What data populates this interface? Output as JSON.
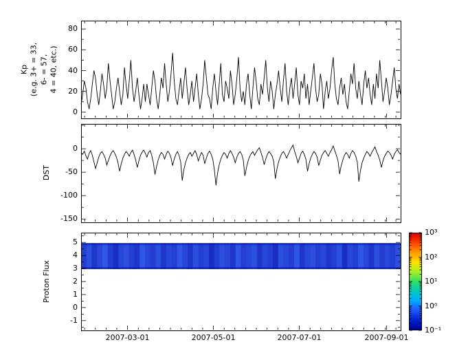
{
  "figure": {
    "background": "#ffffff",
    "axis_color": "#000000"
  },
  "x_axis": {
    "xlim_days": [
      0,
      227
    ],
    "xtick_days": [
      33,
      94,
      155,
      217
    ],
    "xtick_labels": [
      "2007-03-01",
      "2007-05-01",
      "2007-07-01",
      "2007-09-01"
    ]
  },
  "chart_data": [
    {
      "type": "line",
      "name": "kp-index",
      "ylabel": "Kp\n(e.g. 3+ = 33,\n6- = 57,\n4 = 40, etc.)",
      "ylim": [
        -6,
        88
      ],
      "yticks": [
        80,
        60,
        40,
        20,
        0
      ],
      "yticks_minor": [
        70,
        50,
        30,
        10
      ],
      "line_color": "#000000",
      "xtick_labels": [
        "2007-03-01",
        "2007-05-01",
        "2007-07-01",
        "2007-09-01"
      ],
      "values": [
        7,
        17,
        30,
        23,
        10,
        3,
        13,
        27,
        40,
        33,
        17,
        7,
        20,
        37,
        27,
        13,
        23,
        47,
        30,
        17,
        3,
        10,
        23,
        33,
        20,
        7,
        17,
        43,
        27,
        13,
        30,
        50,
        23,
        10,
        20,
        33,
        17,
        3,
        13,
        27,
        10,
        27,
        17,
        7,
        23,
        40,
        30,
        13,
        3,
        17,
        33,
        23,
        47,
        27,
        10,
        20,
        37,
        57,
        30,
        13,
        7,
        20,
        33,
        13,
        27,
        43,
        23,
        7,
        17,
        30,
        10,
        23,
        37,
        17,
        3,
        13,
        27,
        50,
        33,
        17,
        13,
        3,
        23,
        37,
        20,
        7,
        27,
        47,
        17,
        10,
        30,
        23,
        13,
        40,
        27,
        7,
        17,
        33,
        53,
        23,
        10,
        20,
        7,
        27,
        37,
        17,
        3,
        23,
        43,
        30,
        13,
        7,
        27,
        17,
        33,
        50,
        23,
        10,
        30,
        20,
        3,
        17,
        27,
        40,
        23,
        10,
        30,
        47,
        20,
        7,
        23,
        33,
        13,
        27,
        43,
        17,
        7,
        30,
        23,
        37,
        13,
        27,
        7,
        20,
        33,
        47,
        23,
        10,
        17,
        37,
        27,
        3,
        20,
        30,
        13,
        23,
        40,
        53,
        27,
        13,
        7,
        23,
        33,
        17,
        27,
        10,
        3,
        20,
        37,
        27,
        47,
        23,
        13,
        30,
        17,
        7,
        27,
        40,
        23,
        33,
        17,
        7,
        27,
        13,
        37,
        23,
        50,
        30,
        10,
        20,
        33,
        23,
        7,
        17,
        30,
        43,
        23,
        13,
        27,
        17
      ]
    },
    {
      "type": "line",
      "name": "dst-index",
      "ylabel": "DST",
      "ylim": [
        -157,
        53
      ],
      "yticks": [
        0,
        -50,
        -100,
        -150
      ],
      "yticks_minor": [
        50,
        25,
        -25,
        -75,
        -125
      ],
      "line_color": "#000000",
      "xtick_labels": [
        "2007-03-01",
        "2007-05-01",
        "2007-07-01",
        "2007-09-01"
      ],
      "values": [
        -8,
        -12,
        -5,
        -15,
        -22,
        -10,
        -4,
        -14,
        -28,
        -42,
        -30,
        -18,
        -10,
        -6,
        -12,
        -20,
        -35,
        -25,
        -15,
        -8,
        -4,
        -10,
        -18,
        -30,
        -48,
        -32,
        -20,
        -12,
        -6,
        -10,
        -16,
        -8,
        -3,
        -12,
        -24,
        -40,
        -26,
        -14,
        -7,
        -3,
        -10,
        -18,
        -8,
        -4,
        -14,
        -30,
        -55,
        -38,
        -24,
        -14,
        -8,
        -12,
        -22,
        -12,
        -5,
        -10,
        -20,
        -36,
        -22,
        -12,
        -6,
        -14,
        -28,
        -68,
        -45,
        -30,
        -20,
        -12,
        -8,
        -16,
        -10,
        -4,
        -12,
        -26,
        -16,
        -8,
        -14,
        -32,
        -20,
        -10,
        -5,
        -12,
        -22,
        -44,
        -78,
        -52,
        -34,
        -22,
        -14,
        -8,
        -12,
        -20,
        -10,
        -4,
        -10,
        -18,
        -30,
        -18,
        -10,
        -6,
        -12,
        -24,
        -58,
        -40,
        -26,
        -16,
        -10,
        -6,
        -14,
        -8,
        -2,
        2,
        -8,
        -18,
        -34,
        -22,
        -12,
        -6,
        -10,
        -16,
        -28,
        -64,
        -42,
        -28,
        -18,
        -10,
        -6,
        -12,
        -20,
        -12,
        -4,
        2,
        8,
        -6,
        -16,
        -30,
        -20,
        -10,
        -5,
        -12,
        -22,
        -48,
        -32,
        -20,
        -12,
        -6,
        -10,
        -18,
        -36,
        -24,
        -14,
        -8,
        -4,
        -10,
        -16,
        -8,
        -2,
        6,
        -4,
        -14,
        -26,
        -54,
        -36,
        -24,
        -14,
        -8,
        -12,
        -20,
        -10,
        -4,
        -8,
        -16,
        -28,
        -70,
        -46,
        -30,
        -20,
        -12,
        -6,
        -10,
        -16,
        -8,
        -2,
        4,
        -6,
        -14,
        -24,
        -40,
        -26,
        -16,
        -10,
        -5,
        -8,
        -14,
        -22,
        -12,
        -6,
        -2,
        -8,
        -12
      ]
    },
    {
      "type": "heatmap",
      "name": "proton-flux",
      "ylabel": "Proton Flux",
      "ylim": [
        -1.75,
        5.75
      ],
      "yticks": [
        5,
        4,
        3,
        2,
        1,
        0,
        -1
      ],
      "yticks_minor": [
        5.5,
        4.5,
        3.5,
        2.5,
        1.5,
        0.5,
        -0.5,
        -1.5
      ],
      "xtick_labels": [
        "2007-03-01",
        "2007-05-01",
        "2007-07-01",
        "2007-09-01"
      ],
      "band": {
        "y_min": 2.95,
        "y_max": 4.95,
        "color_dark": "#0a18b0",
        "color_light": "#3a66f2"
      },
      "intensity": [
        0.5,
        0.7,
        0.4,
        0.6,
        0.8,
        0.5,
        0.3,
        0.6,
        0.7,
        0.5,
        0.4,
        0.8,
        0.6,
        0.5,
        0.7,
        0.4,
        0.6,
        0.5,
        0.8,
        0.6,
        0.4,
        0.7,
        0.5,
        0.6,
        0.3,
        0.5,
        0.7,
        0.6,
        0.4,
        0.8,
        0.5,
        0.6,
        0.7,
        0.4,
        0.6,
        0.5,
        0.3,
        0.7,
        0.6,
        0.5,
        0.8,
        0.4,
        0.6,
        0.7,
        0.5,
        0.6,
        0.4,
        0.5,
        0.7,
        0.3,
        0.6,
        0.5,
        0.8,
        0.6,
        0.4,
        0.7,
        0.5,
        0.6,
        0.5,
        0.7
      ],
      "colorbar": {
        "scale": "log",
        "tick_exponents": [
          3,
          2,
          1,
          0,
          -1
        ],
        "tick_labels": [
          "10³",
          "10²",
          "10¹",
          "10⁰",
          "10⁻¹"
        ],
        "gradient_top_to_bottom": [
          "#dd0000",
          "#ff4400",
          "#ff9900",
          "#ffe000",
          "#aaee22",
          "#33dd66",
          "#00ccbb",
          "#00aaff",
          "#2255ff",
          "#0022cc",
          "#000099"
        ]
      }
    }
  ]
}
